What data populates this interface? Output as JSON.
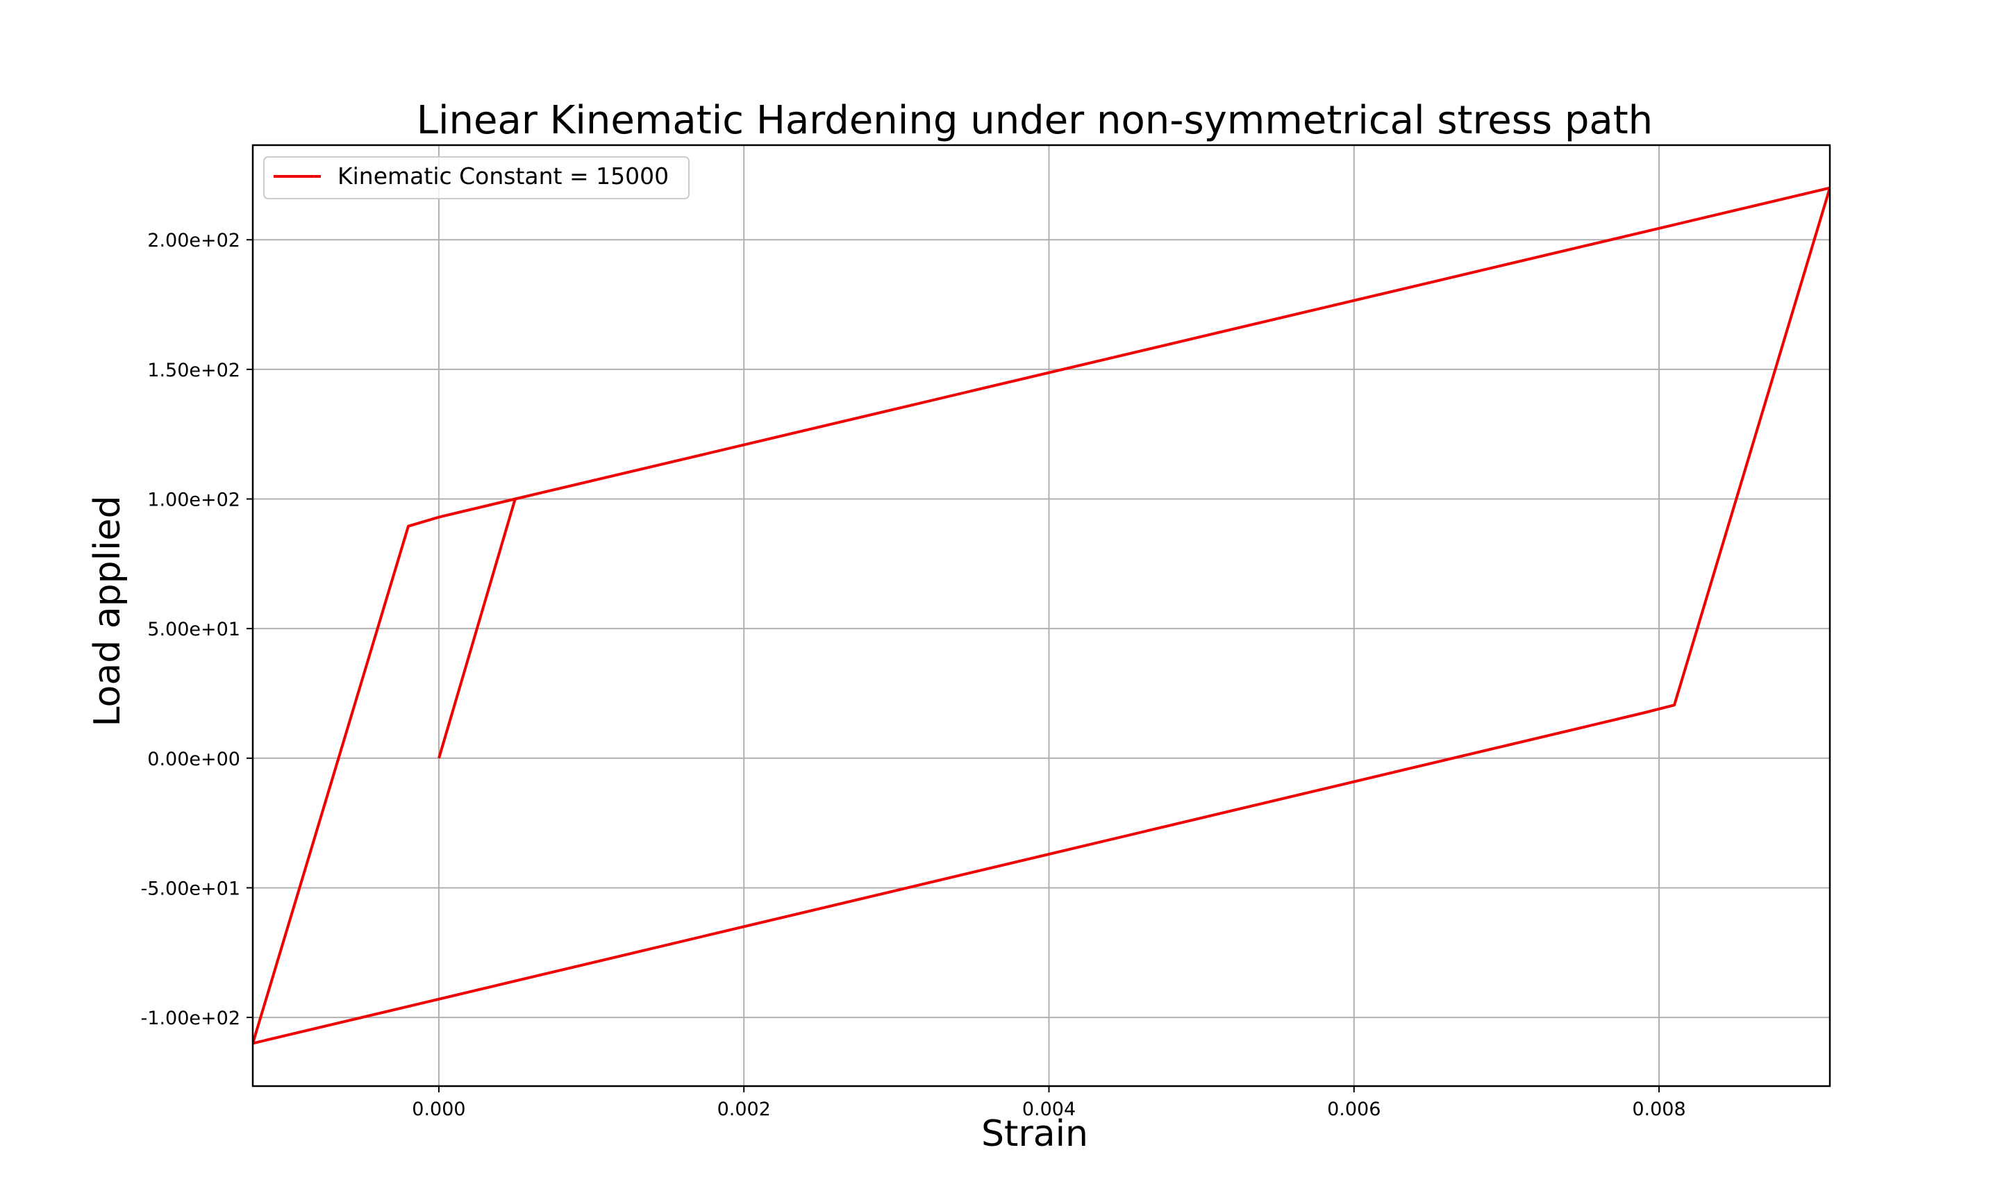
{
  "chart_data": {
    "type": "line",
    "title": "Linear Kinematic Hardening under non-symmetrical stress path",
    "xlabel": "Strain",
    "ylabel": "Load applied",
    "xlim": [
      -0.00122,
      0.00912
    ],
    "ylim": [
      -126.5,
      236.5
    ],
    "x_ticks": [
      0.0,
      0.002,
      0.004,
      0.006,
      0.008
    ],
    "x_tick_labels": [
      "0.000",
      "0.002",
      "0.004",
      "0.006",
      "0.008"
    ],
    "y_ticks": [
      200,
      150,
      100,
      50,
      0,
      -50,
      -100
    ],
    "y_tick_labels": [
      "2.00e+02",
      "1.50e+02",
      "1.00e+02",
      "5.00e+01",
      "0.00e+00",
      "-5.00e+01",
      "-1.00e+02"
    ],
    "grid": true,
    "legend_position": "upper-left",
    "series": [
      {
        "name": "Kinematic Constant = 15000",
        "color": "#ee0000",
        "x": [
          0.0,
          0.0005,
          0.00912,
          0.0081,
          0.0079,
          -0.00122,
          -0.0002,
          0.0,
          0.0005
        ],
        "y": [
          0,
          100,
          220,
          20.5,
          17.5,
          -110,
          89.5,
          93,
          100
        ]
      }
    ]
  }
}
